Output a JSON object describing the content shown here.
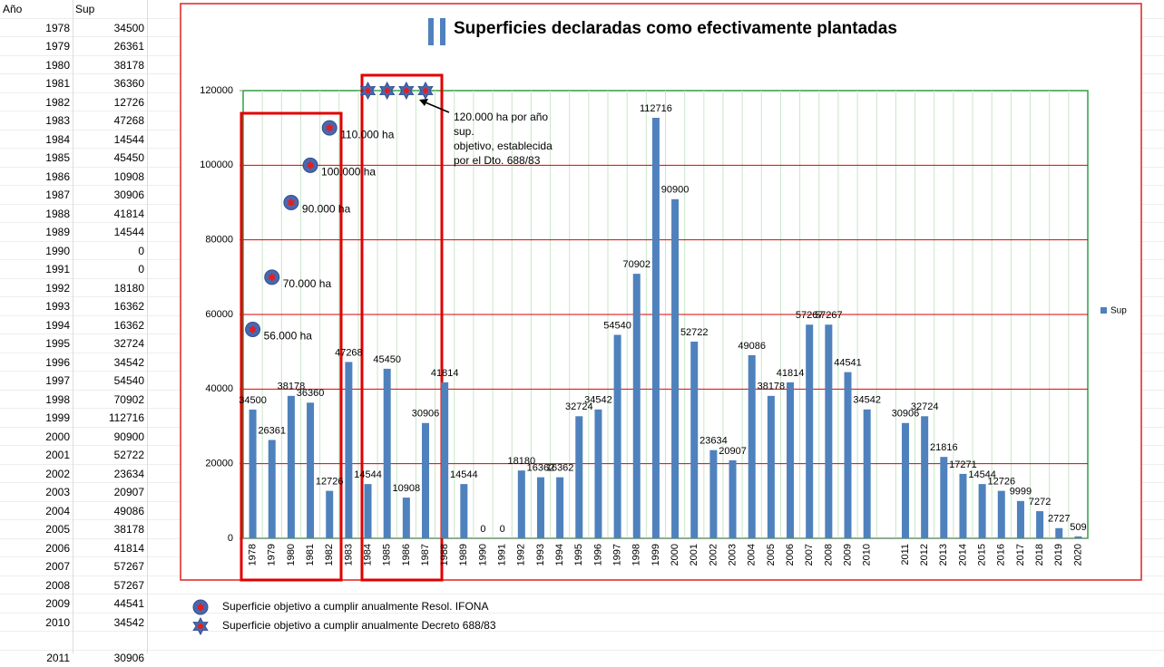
{
  "sheet": {
    "header": [
      "Año",
      "Sup"
    ],
    "rows": [
      [
        1978,
        34500
      ],
      [
        1979,
        26361
      ],
      [
        1980,
        38178
      ],
      [
        1981,
        36360
      ],
      [
        1982,
        12726
      ],
      [
        1983,
        47268
      ],
      [
        1984,
        14544
      ],
      [
        1985,
        45450
      ],
      [
        1986,
        10908
      ],
      [
        1987,
        30906
      ],
      [
        1988,
        41814
      ],
      [
        1989,
        14544
      ],
      [
        1990,
        0
      ],
      [
        1991,
        0
      ],
      [
        1992,
        18180
      ],
      [
        1993,
        16362
      ],
      [
        1994,
        16362
      ],
      [
        1995,
        32724
      ],
      [
        1996,
        34542
      ],
      [
        1997,
        54540
      ],
      [
        1998,
        70902
      ],
      [
        1999,
        112716
      ],
      [
        2000,
        90900
      ],
      [
        2001,
        52722
      ],
      [
        2002,
        23634
      ],
      [
        2003,
        20907
      ],
      [
        2004,
        49086
      ],
      [
        2005,
        38178
      ],
      [
        2006,
        41814
      ],
      [
        2007,
        57267
      ],
      [
        2008,
        57267
      ],
      [
        2009,
        44541
      ],
      [
        2010,
        34542
      ]
    ],
    "rows_below": [
      [
        2011,
        30906
      ]
    ]
  },
  "chart_data": {
    "type": "bar",
    "title": "Superficies declaradas como efectivamente plantadas",
    "categories": [
      "1978",
      "1979",
      "1980",
      "1981",
      "1982",
      "1983",
      "1984",
      "1985",
      "1986",
      "1987",
      "1988",
      "1989",
      "1990",
      "1991",
      "1992",
      "1993",
      "1994",
      "1995",
      "1996",
      "1997",
      "1998",
      "1999",
      "2000",
      "2001",
      "2002",
      "2003",
      "2004",
      "2005",
      "2006",
      "2007",
      "2008",
      "2009",
      "2010",
      null,
      "2011",
      "2012",
      "2013",
      "2014",
      "2015",
      "2016",
      "2017",
      "2018",
      "2019",
      "2020"
    ],
    "series": [
      {
        "name": "Sup",
        "color": "#4f81bd",
        "values": [
          34500,
          26361,
          38178,
          36360,
          12726,
          47268,
          14544,
          45450,
          10908,
          30906,
          41814,
          14544,
          0,
          0,
          18180,
          16362,
          16362,
          32724,
          34542,
          54540,
          70902,
          112716,
          90900,
          52722,
          23634,
          20907,
          49086,
          38178,
          41814,
          57267,
          57267,
          44541,
          34542,
          null,
          30906,
          32724,
          21816,
          17271,
          14544,
          12726,
          9999,
          7272,
          2727,
          509
        ]
      },
      {
        "name": "Superficie objetivo a cumplir anualmente Resol. IFONA",
        "type": "circle-marker",
        "color": "#4a68b0",
        "values": [
          56000,
          70000,
          90000,
          100000,
          110000,
          null,
          null,
          null,
          null,
          null,
          null,
          null,
          null,
          null,
          null,
          null,
          null,
          null,
          null,
          null,
          null,
          null,
          null,
          null,
          null,
          null,
          null,
          null,
          null,
          null,
          null,
          null,
          null,
          null,
          null,
          null,
          null,
          null,
          null,
          null,
          null,
          null,
          null,
          null
        ],
        "value_labels": [
          "56.000 ha",
          "70.000 ha",
          "90.000 ha",
          "100.000 ha",
          "110.000 ha",
          null,
          null,
          null,
          null,
          null,
          null,
          null,
          null,
          null,
          null,
          null,
          null,
          null,
          null,
          null,
          null,
          null,
          null,
          null,
          null,
          null,
          null,
          null,
          null,
          null,
          null,
          null,
          null,
          null,
          null,
          null,
          null,
          null,
          null,
          null,
          null,
          null,
          null,
          null
        ]
      },
      {
        "name": "Superficie objetivo a cumplir anualmente Decreto 688/83",
        "type": "star-marker",
        "color": "#4a68b0",
        "values": [
          null,
          null,
          null,
          null,
          null,
          null,
          120000,
          120000,
          120000,
          120000,
          null,
          null,
          null,
          null,
          null,
          null,
          null,
          null,
          null,
          null,
          null,
          null,
          null,
          null,
          null,
          null,
          null,
          null,
          null,
          null,
          null,
          null,
          null,
          null,
          null,
          null,
          null,
          null,
          null,
          null,
          null,
          null,
          null,
          null
        ]
      }
    ],
    "annotation": [
      "120.000 ha por año",
      "sup.",
      "objetivo, establecida",
      "por el Dto. 688/83"
    ],
    "ylim": [
      0,
      120000
    ],
    "yticks": [
      0,
      20000,
      40000,
      60000,
      80000,
      100000,
      120000
    ],
    "grid": true,
    "grid_color": "#e00000",
    "legend": "right"
  }
}
